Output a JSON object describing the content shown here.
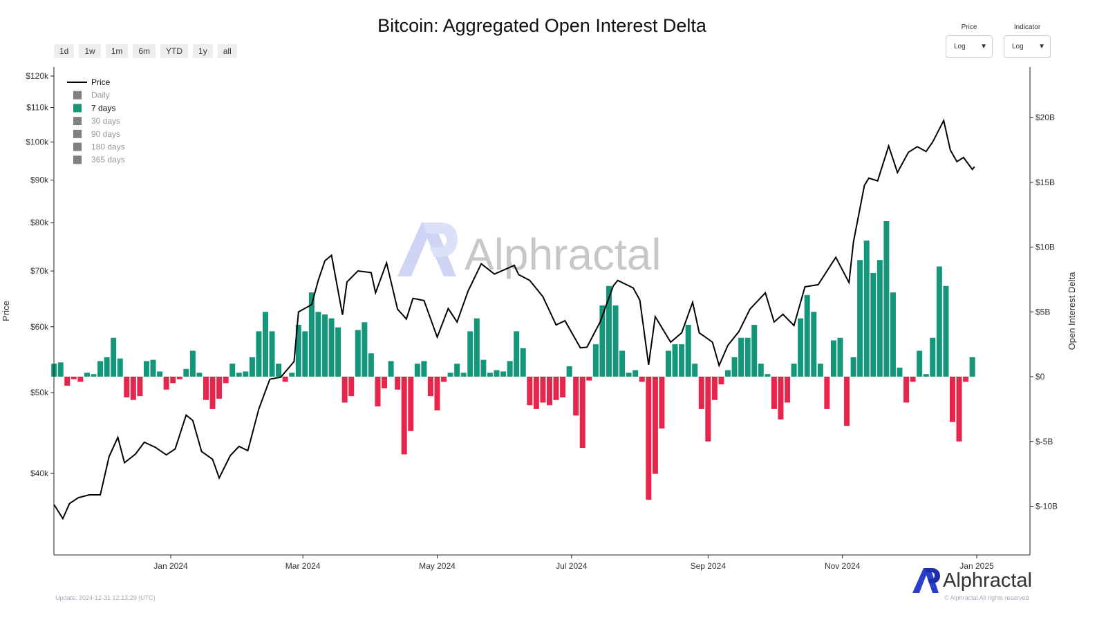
{
  "title": "Bitcoin: Aggregated Open Interest Delta",
  "range_buttons": [
    "1d",
    "1w",
    "1m",
    "6m",
    "YTD",
    "1y",
    "all"
  ],
  "selectors": [
    {
      "label": "Price",
      "value": "Log"
    },
    {
      "label": "Indicator",
      "value": "Log"
    }
  ],
  "footer": {
    "update": "Update: 2024-12-31 12:13:29 (UTC)",
    "copyright": "© Alphractal All rights reserved",
    "brand": "Alphractal"
  },
  "watermark": "Alphractal",
  "colors": {
    "positive": "#14967a",
    "negative": "#e5254b",
    "price": "#000000",
    "inactive": "#808080"
  },
  "chart_data": {
    "type": "bar+line",
    "title": "Bitcoin: Aggregated Open Interest Delta",
    "ylabel_left": "Price",
    "ylabel_right": "Open Interest Delta",
    "y_left_scale": "log",
    "y_left_ticks": [
      "$40k",
      "$50k",
      "$60k",
      "$70k",
      "$80k",
      "$90k",
      "$100k",
      "$110k",
      "$120k"
    ],
    "y_right_ticks": [
      "$-10B",
      "$-5B",
      "$0",
      "$5B",
      "$10B",
      "$15B",
      "$20B"
    ],
    "x_ticks": [
      "Jan 2024",
      "Mar 2024",
      "May 2024",
      "Jul 2024",
      "Sep 2024",
      "Nov 2024",
      "Jan 2025"
    ],
    "legend": {
      "placement": "top-left",
      "items": [
        {
          "label": "Price",
          "active": true,
          "type": "line"
        },
        {
          "label": "Daily",
          "active": false
        },
        {
          "label": "7 days",
          "active": true
        },
        {
          "label": "30 days",
          "active": false
        },
        {
          "label": "90 days",
          "active": false
        },
        {
          "label": "180 days",
          "active": false
        },
        {
          "label": "365 days",
          "active": false
        }
      ]
    },
    "price": [
      [
        "2023-11-09",
        36.7
      ],
      [
        "2023-11-13",
        35.3
      ],
      [
        "2023-11-16",
        36.8
      ],
      [
        "2023-11-20",
        37.4
      ],
      [
        "2023-11-25",
        37.7
      ],
      [
        "2023-11-30",
        37.7
      ],
      [
        "2023-12-04",
        41.9
      ],
      [
        "2023-12-08",
        44.2
      ],
      [
        "2023-12-11",
        41.2
      ],
      [
        "2023-12-16",
        42.2
      ],
      [
        "2023-12-20",
        43.6
      ],
      [
        "2023-12-25",
        43.0
      ],
      [
        "2023-12-30",
        42.1
      ],
      [
        "2024-01-03",
        42.8
      ],
      [
        "2024-01-08",
        47.0
      ],
      [
        "2024-01-11",
        46.3
      ],
      [
        "2024-01-15",
        42.5
      ],
      [
        "2024-01-20",
        41.6
      ],
      [
        "2024-01-23",
        39.5
      ],
      [
        "2024-01-28",
        42.0
      ],
      [
        "2024-02-01",
        43.1
      ],
      [
        "2024-02-05",
        42.6
      ],
      [
        "2024-02-10",
        47.8
      ],
      [
        "2024-02-15",
        51.9
      ],
      [
        "2024-02-20",
        52.2
      ],
      [
        "2024-02-26",
        54.5
      ],
      [
        "2024-02-28",
        62.5
      ],
      [
        "2024-03-05",
        63.8
      ],
      [
        "2024-03-08",
        68.2
      ],
      [
        "2024-03-11",
        72.0
      ],
      [
        "2024-03-14",
        73.1
      ],
      [
        "2024-03-19",
        62.0
      ],
      [
        "2024-03-21",
        67.9
      ],
      [
        "2024-03-26",
        70.0
      ],
      [
        "2024-04-01",
        69.7
      ],
      [
        "2024-04-03",
        65.9
      ],
      [
        "2024-04-08",
        71.6
      ],
      [
        "2024-04-13",
        63.0
      ],
      [
        "2024-04-17",
        61.3
      ],
      [
        "2024-04-20",
        64.9
      ],
      [
        "2024-04-25",
        64.5
      ],
      [
        "2024-05-01",
        58.3
      ],
      [
        "2024-05-06",
        63.1
      ],
      [
        "2024-05-10",
        60.8
      ],
      [
        "2024-05-15",
        66.2
      ],
      [
        "2024-05-21",
        71.4
      ],
      [
        "2024-05-27",
        69.4
      ],
      [
        "2024-06-05",
        71.1
      ],
      [
        "2024-06-07",
        69.3
      ],
      [
        "2024-06-12",
        68.2
      ],
      [
        "2024-06-18",
        65.2
      ],
      [
        "2024-06-24",
        60.3
      ],
      [
        "2024-06-28",
        61.0
      ],
      [
        "2024-07-05",
        56.6
      ],
      [
        "2024-07-08",
        56.7
      ],
      [
        "2024-07-14",
        60.8
      ],
      [
        "2024-07-20",
        67.2
      ],
      [
        "2024-07-22",
        68.2
      ],
      [
        "2024-07-29",
        66.8
      ],
      [
        "2024-08-01",
        64.6
      ],
      [
        "2024-08-05",
        54.0
      ],
      [
        "2024-08-08",
        61.7
      ],
      [
        "2024-08-15",
        57.5
      ],
      [
        "2024-08-20",
        59.0
      ],
      [
        "2024-08-25",
        64.2
      ],
      [
        "2024-08-28",
        59.0
      ],
      [
        "2024-09-03",
        57.5
      ],
      [
        "2024-09-06",
        53.9
      ],
      [
        "2024-09-10",
        57.0
      ],
      [
        "2024-09-15",
        59.2
      ],
      [
        "2024-09-20",
        63.0
      ],
      [
        "2024-09-27",
        65.9
      ],
      [
        "2024-10-01",
        60.8
      ],
      [
        "2024-10-05",
        62.1
      ],
      [
        "2024-10-10",
        60.2
      ],
      [
        "2024-10-15",
        67.0
      ],
      [
        "2024-10-21",
        67.4
      ],
      [
        "2024-10-29",
        72.7
      ],
      [
        "2024-11-04",
        67.8
      ],
      [
        "2024-11-06",
        75.8
      ],
      [
        "2024-11-11",
        88.7
      ],
      [
        "2024-11-13",
        90.5
      ],
      [
        "2024-11-17",
        89.8
      ],
      [
        "2024-11-22",
        98.9
      ],
      [
        "2024-11-26",
        91.9
      ],
      [
        "2024-12-01",
        97.2
      ],
      [
        "2024-12-05",
        98.7
      ],
      [
        "2024-12-09",
        97.4
      ],
      [
        "2024-12-12",
        100.0
      ],
      [
        "2024-12-17",
        106.1
      ],
      [
        "2024-12-20",
        97.8
      ],
      [
        "2024-12-23",
        94.7
      ],
      [
        "2024-12-26",
        95.8
      ],
      [
        "2024-12-30",
        92.7
      ],
      [
        "2024-12-31",
        93.4
      ]
    ],
    "price_unit": "thousand USD",
    "delta_unit": "billion USD",
    "delta_7d": {
      "x": [
        "2023-11-09",
        "2023-11-12",
        "2023-11-15",
        "2023-11-18",
        "2023-11-21",
        "2023-11-24",
        "2023-11-27",
        "2023-11-30",
        "2023-12-03",
        "2023-12-06",
        "2023-12-09",
        "2023-12-12",
        "2023-12-15",
        "2023-12-18",
        "2023-12-21",
        "2023-12-24",
        "2023-12-27",
        "2023-12-30",
        "2024-01-02",
        "2024-01-05",
        "2024-01-08",
        "2024-01-11",
        "2024-01-14",
        "2024-01-17",
        "2024-01-20",
        "2024-01-23",
        "2024-01-26",
        "2024-01-29",
        "2024-02-01",
        "2024-02-04",
        "2024-02-07",
        "2024-02-10",
        "2024-02-13",
        "2024-02-16",
        "2024-02-19",
        "2024-02-22",
        "2024-02-25",
        "2024-02-28",
        "2024-03-02",
        "2024-03-05",
        "2024-03-08",
        "2024-03-11",
        "2024-03-14",
        "2024-03-17",
        "2024-03-20",
        "2024-03-23",
        "2024-03-26",
        "2024-03-29",
        "2024-04-01",
        "2024-04-04",
        "2024-04-07",
        "2024-04-10",
        "2024-04-13",
        "2024-04-16",
        "2024-04-19",
        "2024-04-22",
        "2024-04-25",
        "2024-04-28",
        "2024-05-01",
        "2024-05-04",
        "2024-05-07",
        "2024-05-10",
        "2024-05-13",
        "2024-05-16",
        "2024-05-19",
        "2024-05-22",
        "2024-05-25",
        "2024-05-28",
        "2024-05-31",
        "2024-06-03",
        "2024-06-06",
        "2024-06-09",
        "2024-06-12",
        "2024-06-15",
        "2024-06-18",
        "2024-06-21",
        "2024-06-24",
        "2024-06-27",
        "2024-06-30",
        "2024-07-03",
        "2024-07-06",
        "2024-07-09",
        "2024-07-12",
        "2024-07-15",
        "2024-07-18",
        "2024-07-21",
        "2024-07-24",
        "2024-07-27",
        "2024-07-30",
        "2024-08-02",
        "2024-08-05",
        "2024-08-08",
        "2024-08-11",
        "2024-08-14",
        "2024-08-17",
        "2024-08-20",
        "2024-08-23",
        "2024-08-26",
        "2024-08-29",
        "2024-09-01",
        "2024-09-04",
        "2024-09-07",
        "2024-09-10",
        "2024-09-13",
        "2024-09-16",
        "2024-09-19",
        "2024-09-22",
        "2024-09-25",
        "2024-09-28",
        "2024-10-01",
        "2024-10-04",
        "2024-10-07",
        "2024-10-10",
        "2024-10-13",
        "2024-10-16",
        "2024-10-19",
        "2024-10-22",
        "2024-10-25",
        "2024-10-28",
        "2024-10-31",
        "2024-11-03",
        "2024-11-06",
        "2024-11-09",
        "2024-11-12",
        "2024-11-15",
        "2024-11-18",
        "2024-11-21",
        "2024-11-24",
        "2024-11-27",
        "2024-11-30",
        "2024-12-03",
        "2024-12-06",
        "2024-12-09",
        "2024-12-12",
        "2024-12-15",
        "2024-12-18",
        "2024-12-21",
        "2024-12-24",
        "2024-12-27",
        "2024-12-30"
      ],
      "values": [
        1.0,
        1.1,
        -0.7,
        -0.2,
        -0.4,
        0.3,
        0.2,
        1.2,
        1.5,
        3.0,
        1.4,
        -1.6,
        -1.8,
        -1.5,
        1.2,
        1.3,
        0.4,
        -1.0,
        -0.5,
        -0.2,
        0.6,
        2.0,
        0.3,
        -1.8,
        -2.5,
        -1.7,
        -0.5,
        1.0,
        0.3,
        0.4,
        1.5,
        3.5,
        5.0,
        3.5,
        1.0,
        -0.4,
        0.3,
        4.0,
        3.5,
        6.5,
        5.0,
        4.8,
        4.5,
        3.8,
        -2.0,
        -1.5,
        3.6,
        4.2,
        1.8,
        -2.3,
        -0.9,
        1.2,
        -1.0,
        -6.0,
        -4.2,
        1.0,
        1.2,
        -1.5,
        -2.6,
        -0.4,
        0.3,
        1.0,
        0.3,
        3.5,
        4.5,
        1.3,
        0.3,
        0.5,
        0.4,
        1.2,
        3.5,
        2.2,
        -2.2,
        -2.5,
        -2.0,
        -2.2,
        -1.8,
        -1.6,
        0.8,
        -3.0,
        -5.5,
        -0.3,
        2.5,
        5.5,
        7.0,
        5.5,
        2.0,
        0.3,
        0.5,
        -0.4,
        -9.5,
        -7.5,
        -4.0,
        2.0,
        2.5,
        2.5,
        4.0,
        1.0,
        -2.5,
        -5.0,
        -1.8,
        -0.6,
        0.5,
        1.5,
        3.0,
        3.0,
        4.0,
        1.0,
        0.2,
        -2.5,
        -3.3,
        -2.0,
        1.0,
        4.5,
        6.3,
        5.0,
        1.0,
        -2.5,
        2.8,
        3.0,
        -3.8,
        1.5,
        9.0,
        10.5,
        8.0,
        9.0,
        12.0,
        6.5,
        0.7,
        -2.0,
        -0.4,
        2.0,
        0.2,
        3.0,
        8.5,
        7.0,
        -3.5,
        -5.0,
        -0.4,
        1.5
      ]
    }
  }
}
